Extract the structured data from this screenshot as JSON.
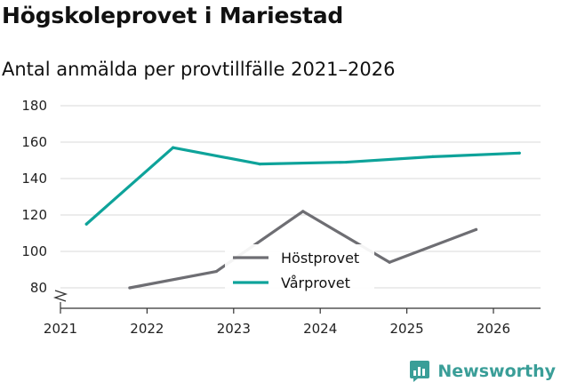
{
  "title": "Högskoleprovet i Mariestad",
  "subtitle": "Antal anmälda per provtillfälle 2021–2026",
  "brand": {
    "name": "Newsworthy",
    "icon": "newsworthy-logo-icon"
  },
  "colors": {
    "hostprovet": "#6e6e73",
    "varprovet": "#0ea39a",
    "grid": "#d9d9d9",
    "brand": "#3a9e98"
  },
  "chart_data": {
    "type": "line",
    "title": "Högskoleprovet i Mariestad",
    "subtitle": "Antal anmälda per provtillfälle 2021–2026",
    "xlabel": "",
    "ylabel": "",
    "xlim": [
      2021,
      2026.5
    ],
    "ylim": [
      70,
      180
    ],
    "x_ticks": [
      "2021",
      "2022",
      "2023",
      "2024",
      "2025",
      "2026"
    ],
    "y_ticks": [
      "80",
      "100",
      "120",
      "140",
      "160",
      "180"
    ],
    "y_axis_break": true,
    "legend_position": "center",
    "series": [
      {
        "name": "Höstprovet",
        "color": "#6e6e73",
        "x": [
          2021.8,
          2022.8,
          2023.8,
          2024.8,
          2025.8
        ],
        "y": [
          80,
          89,
          122,
          94,
          112
        ]
      },
      {
        "name": "Vårprovet",
        "color": "#0ea39a",
        "x": [
          2021.3,
          2022.3,
          2023.3,
          2024.3,
          2025.3,
          2026.3
        ],
        "y": [
          115,
          157,
          148,
          149,
          152,
          154
        ]
      }
    ]
  }
}
